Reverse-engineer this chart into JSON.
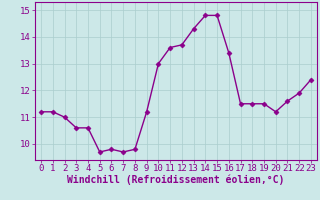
{
  "x": [
    0,
    1,
    2,
    3,
    4,
    5,
    6,
    7,
    8,
    9,
    10,
    11,
    12,
    13,
    14,
    15,
    16,
    17,
    18,
    19,
    20,
    21,
    22,
    23
  ],
  "y": [
    11.2,
    11.2,
    11.0,
    10.6,
    10.6,
    9.7,
    9.8,
    9.7,
    9.8,
    11.2,
    13.0,
    13.6,
    13.7,
    14.3,
    14.8,
    14.8,
    13.4,
    11.5,
    11.5,
    11.5,
    11.2,
    11.6,
    11.9,
    12.4
  ],
  "line_color": "#8b008b",
  "marker": "D",
  "marker_size": 2.5,
  "line_width": 1.0,
  "bg_color": "#cce8e8",
  "grid_color": "#aacece",
  "xlabel": "Windchill (Refroidissement éolien,°C)",
  "xlim": [
    -0.5,
    23.5
  ],
  "ylim": [
    9.4,
    15.3
  ],
  "yticks": [
    10,
    11,
    12,
    13,
    14,
    15
  ],
  "tick_color": "#8b008b",
  "axis_color": "#8b008b",
  "xlabel_fontsize": 7.0,
  "tick_fontsize": 6.5
}
